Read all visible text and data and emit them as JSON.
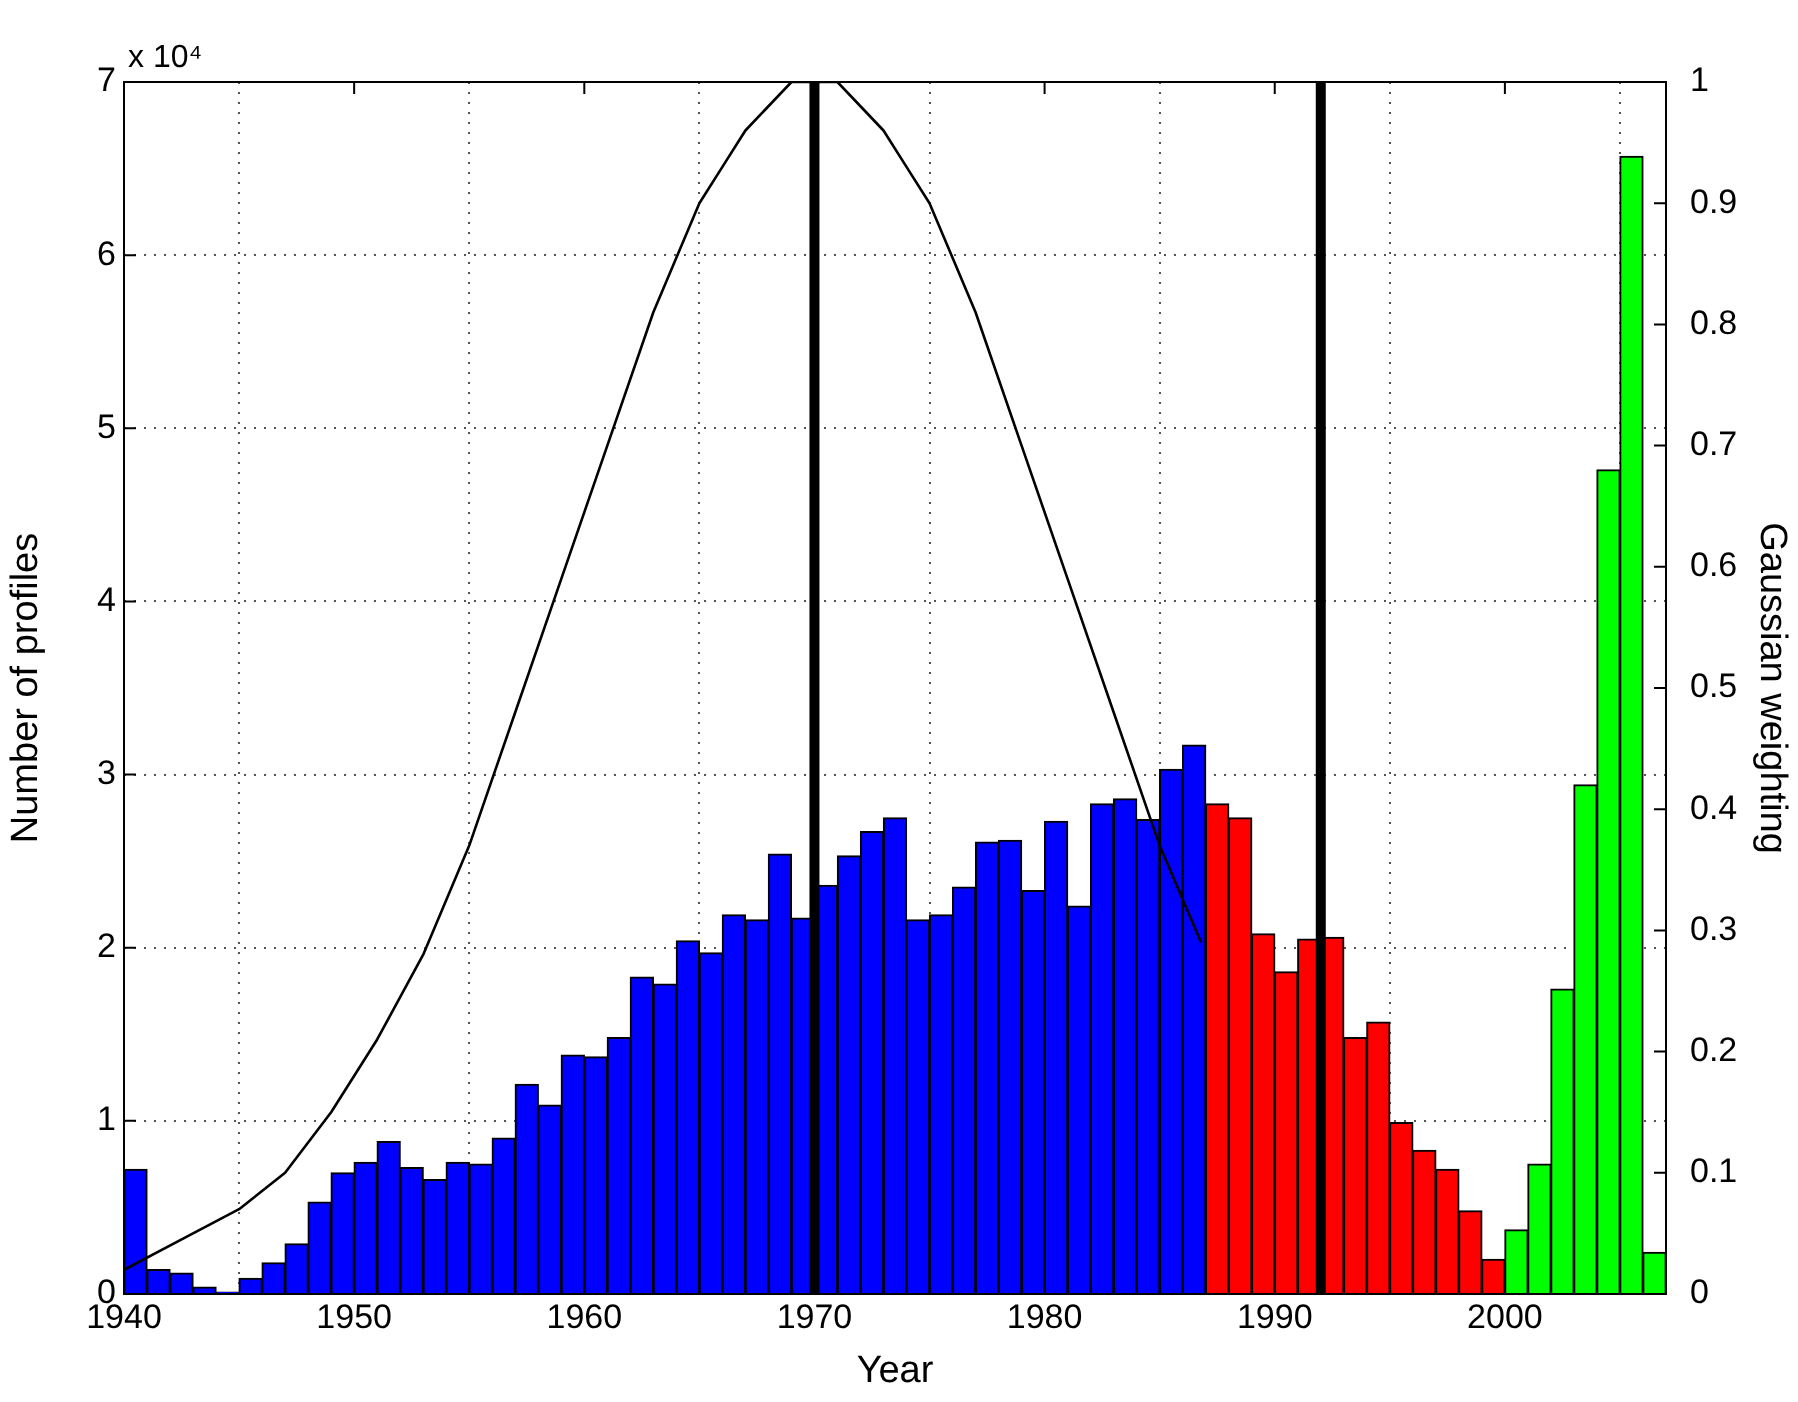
{
  "chart_data": {
    "type": "histogram",
    "xlabel": "Year",
    "ylabel": "Number of profiles",
    "y2label": "Gaussian weighting",
    "annotations": [
      "x 10⁴"
    ],
    "xlim": [
      1940,
      2007
    ],
    "xticks": [
      1940,
      1950,
      1960,
      1970,
      1980,
      1990,
      2000
    ],
    "ylim": [
      0,
      7
    ],
    "yticks": [
      0,
      1,
      2,
      3,
      4,
      5,
      6,
      7
    ],
    "y2lim": [
      0,
      1
    ],
    "y2ticks": [
      0,
      0.1,
      0.2,
      0.3,
      0.4,
      0.5,
      0.6,
      0.7,
      0.8,
      0.9,
      1
    ],
    "grid": true,
    "legend": false,
    "series": [
      {
        "type": "histogram",
        "bins": [
          1940,
          1941,
          1942,
          1943,
          1944,
          1945,
          1946,
          1947,
          1948,
          1949,
          1950,
          1951,
          1952,
          1953,
          1954,
          1955,
          1956,
          1957,
          1958,
          1959,
          1960,
          1961,
          1962,
          1963,
          1964,
          1965,
          1966,
          1967,
          1968,
          1969,
          1970,
          1971,
          1972,
          1973,
          1974,
          1975,
          1976,
          1977,
          1978,
          1979,
          1980,
          1981,
          1982,
          1983,
          1984,
          1985,
          1986,
          1987,
          1988,
          1989,
          1990,
          1991,
          1992,
          1993,
          1994,
          1995,
          1996,
          1997,
          1998,
          1999,
          2000,
          2001,
          2002,
          2003,
          2004,
          2005,
          2006,
          2007
        ],
        "values": [
          0.72,
          0.14,
          0.12,
          0.04,
          0.01,
          0.09,
          0.18,
          0.29,
          0.53,
          0.7,
          0.76,
          0.88,
          0.73,
          0.66,
          0.76,
          0.75,
          0.9,
          1.21,
          1.09,
          1.38,
          1.37,
          1.48,
          1.83,
          1.79,
          2.04,
          1.97,
          2.19,
          2.16,
          2.54,
          2.17,
          2.36,
          2.53,
          2.67,
          2.75,
          2.16,
          2.19,
          2.35,
          2.61,
          2.62,
          2.33,
          2.73,
          2.24,
          2.83,
          2.86,
          2.74,
          3.03,
          3.17,
          2.83,
          2.75,
          2.08,
          1.86,
          2.05,
          2.06,
          1.48,
          1.57,
          0.99,
          0.83,
          0.72,
          0.48,
          0.2,
          0.37,
          0.75,
          1.76,
          2.94,
          4.76,
          6.57,
          0.24
        ],
        "colors": [
          "#0000ff",
          "#0000ff",
          "#0000ff",
          "#0000ff",
          "#0000ff",
          "#0000ff",
          "#0000ff",
          "#0000ff",
          "#0000ff",
          "#0000ff",
          "#0000ff",
          "#0000ff",
          "#0000ff",
          "#0000ff",
          "#0000ff",
          "#0000ff",
          "#0000ff",
          "#0000ff",
          "#0000ff",
          "#0000ff",
          "#0000ff",
          "#0000ff",
          "#0000ff",
          "#0000ff",
          "#0000ff",
          "#0000ff",
          "#0000ff",
          "#0000ff",
          "#0000ff",
          "#0000ff",
          "#0000ff",
          "#0000ff",
          "#0000ff",
          "#0000ff",
          "#0000ff",
          "#0000ff",
          "#0000ff",
          "#0000ff",
          "#0000ff",
          "#0000ff",
          "#0000ff",
          "#0000ff",
          "#0000ff",
          "#0000ff",
          "#0000ff",
          "#0000ff",
          "#0000ff",
          "#ff0000",
          "#ff0000",
          "#ff0000",
          "#ff0000",
          "#ff0000",
          "#ff0000",
          "#ff0000",
          "#ff0000",
          "#ff0000",
          "#ff0000",
          "#ff0000",
          "#ff0000",
          "#ff0000",
          "#00ff00",
          "#00ff00",
          "#00ff00",
          "#00ff00",
          "#00ff00",
          "#00ff00",
          "#00ff00"
        ]
      },
      {
        "type": "line",
        "axis": "y2",
        "color": "#000000",
        "marker": "none",
        "x": [
          1940,
          1943,
          1945,
          1947,
          1949,
          1951,
          1953,
          1955,
          1957,
          1959,
          1961,
          1963,
          1965,
          1966,
          1967,
          1968,
          1969,
          1970,
          1971,
          1972,
          1973,
          1974,
          1975,
          1977,
          1979,
          1981,
          1983,
          1985,
          1986.8
        ],
        "values": [
          0.02,
          0.05,
          0.07,
          0.1,
          0.15,
          0.21,
          0.28,
          0.37,
          0.48,
          0.59,
          0.7,
          0.81,
          0.9,
          0.93,
          0.96,
          0.98,
          1.0,
          1.0,
          1.0,
          0.98,
          0.96,
          0.93,
          0.9,
          0.81,
          0.7,
          0.59,
          0.48,
          0.37,
          0.29
        ]
      }
    ],
    "ref_lines": [
      {
        "axis": "x",
        "value": 1970,
        "color": "#000000"
      },
      {
        "axis": "x",
        "value": 1992,
        "color": "#000000"
      }
    ]
  }
}
